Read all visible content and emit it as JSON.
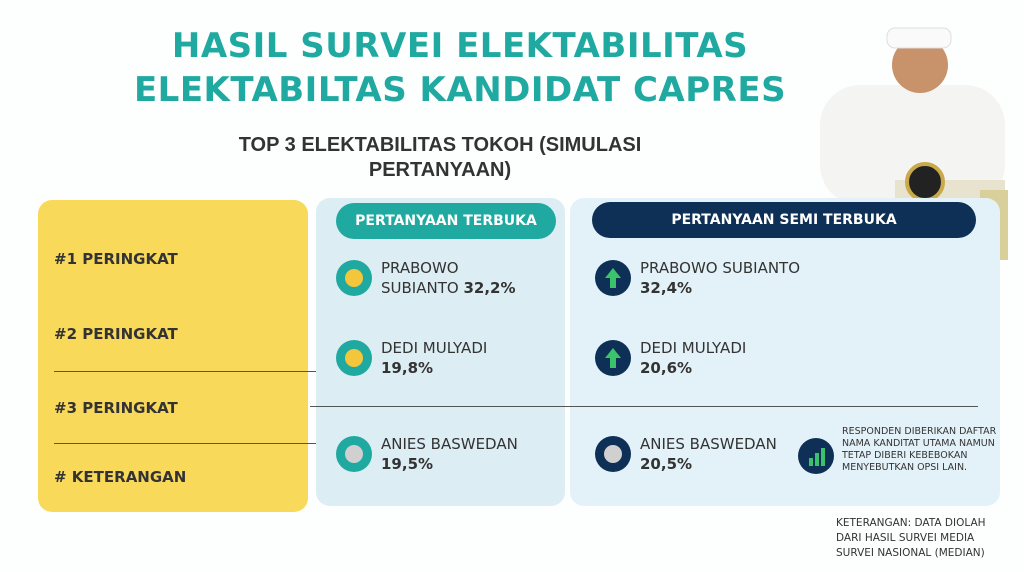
{
  "header": {
    "title": [
      "HASIL SURVEI ELEKTABILITAS",
      "ELEKTABILTAS KANDIDAT CAPRES"
    ],
    "subtitle": [
      "TOP 3 ELEKTABILITAS TOKOH (SIMULASI",
      "PERTANYAAN)"
    ]
  },
  "rows": [
    "#1 PERINGKAT",
    "#2 PERINGKAT",
    "#3 PERINGKAT",
    "# KETERANGAN"
  ],
  "columns": [
    {
      "title": "PERTANYAAN TERBUKA",
      "entries": [
        {
          "name": "PRABOWO SUBIANTO",
          "value": "32,2%"
        },
        {
          "name": "DEDI MULYADI",
          "value": "19,8%"
        },
        {
          "name": "ANIES BASWEDAN",
          "value": "19,5%"
        }
      ]
    },
    {
      "title": "PERTANYAAN SEMI TERBUKA",
      "entries": [
        {
          "name": "PRABOWO SUBIANTO",
          "value": "32,4%"
        },
        {
          "name": "DEDI MULYADI",
          "value": "20,6%"
        },
        {
          "name": "ANIES BASWEDAN",
          "value": "20,5%"
        }
      ],
      "note": "RESPONDEN DIBERIKAN DAFTAR NAMA KANDITAT UTAMA NAMUN TETAP DIBERI KEBEBOKAN MENYEBUTKAN OPSI LAIN."
    }
  ],
  "footer": "KETERANGAN: DATA DIOLAH DARI HASIL SURVEI MEDIA SURVEI NASIONAL (MEDIAN)"
}
